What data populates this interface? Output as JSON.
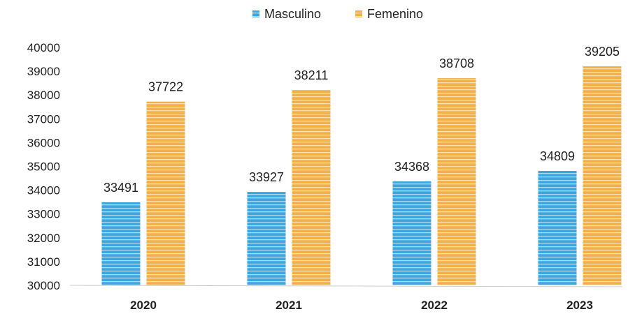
{
  "chart_data": {
    "type": "bar",
    "categories": [
      "2020",
      "2021",
      "2022",
      "2023"
    ],
    "series": [
      {
        "name": "Masculino",
        "values": [
          33491,
          33927,
          34368,
          34809
        ],
        "color": "#3fa6dd"
      },
      {
        "name": "Femenino",
        "values": [
          37722,
          38211,
          38708,
          39205
        ],
        "color": "#f0b04a"
      }
    ],
    "ylim": [
      30000,
      40000
    ],
    "y_ticks": [
      "30000",
      "31000",
      "32000",
      "33000",
      "34000",
      "35000",
      "36000",
      "37000",
      "38000",
      "39000",
      "40000"
    ],
    "legend_position": "top-center",
    "grid": false,
    "data_labels": true
  }
}
